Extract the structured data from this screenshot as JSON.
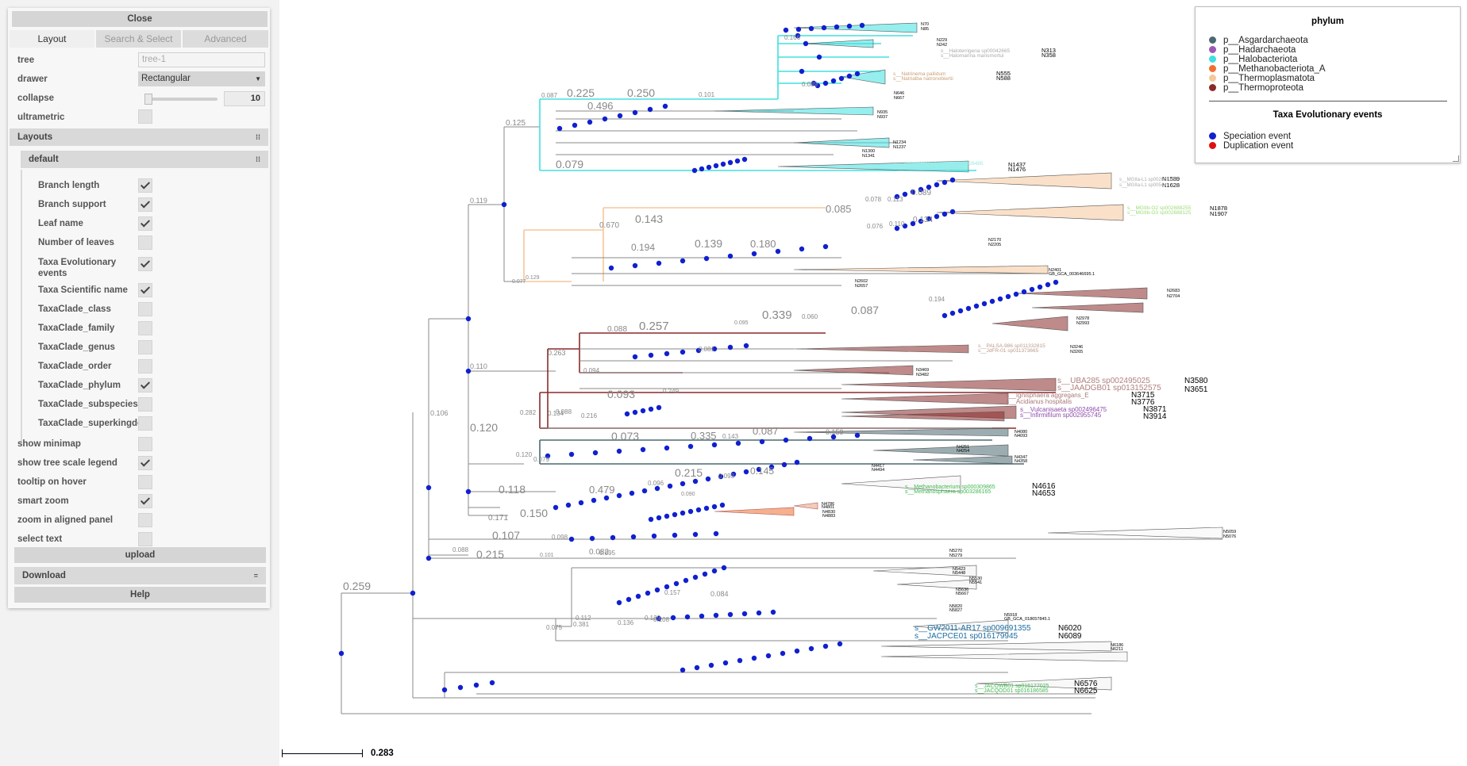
{
  "panel": {
    "close_label": "Close",
    "tabs": [
      {
        "label": "Layout",
        "active": true
      },
      {
        "label": "Search & Select",
        "active": false
      },
      {
        "label": "Advanced",
        "active": false
      }
    ],
    "tree_label": "tree",
    "tree_value": "tree-1",
    "drawer_label": "drawer",
    "drawer_value": "Rectangular",
    "collapse_label": "collapse",
    "collapse_value": "10",
    "ultrametric_label": "ultrametric",
    "layouts_header": "Layouts",
    "default_header": "default",
    "layout_options": [
      {
        "label": "Branch length",
        "checked": true
      },
      {
        "label": "Branch support",
        "checked": true
      },
      {
        "label": "Leaf name",
        "checked": true
      },
      {
        "label": "Number of leaves",
        "checked": false
      },
      {
        "label": "Taxa Evolutionary events",
        "checked": true
      },
      {
        "label": "Taxa Scientific name",
        "checked": true
      },
      {
        "label": "TaxaClade_class",
        "checked": false
      },
      {
        "label": "TaxaClade_family",
        "checked": false
      },
      {
        "label": "TaxaClade_genus",
        "checked": false
      },
      {
        "label": "TaxaClade_order",
        "checked": false
      },
      {
        "label": "TaxaClade_phylum",
        "checked": true
      },
      {
        "label": "TaxaClade_subspecies",
        "checked": false
      },
      {
        "label": "TaxaClade_superkingdom",
        "checked": false
      }
    ],
    "view_options": [
      {
        "label": "show minimap",
        "checked": false
      },
      {
        "label": "show tree scale legend",
        "checked": true
      },
      {
        "label": "tooltip on hover",
        "checked": false
      },
      {
        "label": "smart zoom",
        "checked": true
      },
      {
        "label": "zoom in aligned panel",
        "checked": false
      },
      {
        "label": "select text",
        "checked": false
      }
    ],
    "upload_label": "upload",
    "download_label": "Download",
    "help_label": "Help"
  },
  "legend": {
    "phylum_title": "phylum",
    "phyla": [
      {
        "label": "p__Asgardarchaeota",
        "color": "#4a6a72"
      },
      {
        "label": "p__Hadarchaeota",
        "color": "#9b59b6"
      },
      {
        "label": "p__Halobacteriota",
        "color": "#40e0e0"
      },
      {
        "label": "p__Methanobacteriota_A",
        "color": "#f07030"
      },
      {
        "label": "p__Thermoplasmatota",
        "color": "#f5c79a"
      },
      {
        "label": "p__Thermoproteota",
        "color": "#8b2a2a"
      }
    ],
    "events_title": "Taxa Evolutionary events",
    "events": [
      {
        "label": "Speciation event",
        "color": "#1020d0"
      },
      {
        "label": "Duplication event",
        "color": "#e01010"
      }
    ]
  },
  "scale": {
    "value": "0.283"
  },
  "tree": {
    "support_labels": [
      "0.259",
      "0.106",
      "0.119",
      "0.125",
      "0.087",
      "0.225",
      "0.250",
      "0.101",
      "0.166",
      "0.089",
      "0.496",
      "0.079",
      "0.077",
      "0.129",
      "0.670",
      "0.143",
      "0.085",
      "0.078",
      "0.113",
      "0.089",
      "0.076",
      "0.110",
      "0.134",
      "0.194",
      "0.139",
      "0.180",
      "0.110",
      "0.120",
      "0.263",
      "0.088",
      "0.257",
      "0.095",
      "0.339",
      "0.060",
      "0.087",
      "0.194",
      "0.081",
      "0.094",
      "0.093",
      "0.249",
      "0.134",
      "0.088",
      "0.282",
      "0.216",
      "0.073",
      "0.335",
      "0.143",
      "0.087",
      "0.159",
      "0.079",
      "0.120",
      "0.118",
      "0.479",
      "0.096",
      "0.215",
      "0.093",
      "0.145",
      "0.090",
      "0.171",
      "0.150",
      "0.088",
      "0.107",
      "0.215",
      "0.098",
      "0.101",
      "0.082",
      "0.095",
      "0.381",
      "0.136",
      "0.129",
      "0.157",
      "0.084",
      "0.108",
      "0.112",
      "0.075"
    ],
    "node_ids": [
      "N70",
      "N85",
      "N229",
      "N242",
      "N313",
      "N358",
      "N555",
      "N588",
      "N646",
      "N667",
      "N935",
      "N937",
      "N1234",
      "N1237",
      "N1300",
      "N1341",
      "N1437",
      "N1476",
      "N1589",
      "N1628",
      "N1878",
      "N1907",
      "N2170",
      "N2205",
      "N2401",
      "GB_GCA_003646695.1",
      "N2602",
      "N2657",
      "N2683",
      "N2704",
      "N2978",
      "N2993",
      "N3246",
      "N3265",
      "N3469",
      "N3482",
      "N3580",
      "N3651",
      "N3715",
      "N3776",
      "N3871",
      "N3914",
      "N4080",
      "N4093",
      "N4251",
      "N4254",
      "N4347",
      "N4358",
      "N4417",
      "N4494",
      "N4616",
      "N4653",
      "N4786",
      "N4801",
      "N4830",
      "N4883",
      "N5059",
      "N5076",
      "N5270",
      "N5279",
      "N5423",
      "N5448",
      "N5530",
      "N5541",
      "N5636",
      "N5667",
      "N5820",
      "N5827",
      "N5918",
      "GB_GCA_018657845.1",
      "N6020",
      "N6089",
      "N6186",
      "N6211",
      "N6576",
      "N6625"
    ],
    "species_names": [
      "s__Haloterrigena sp00042665",
      "s__Halomarina marismortui",
      "s__Natrinema pallidum",
      "s__Natrialba natronobiertii",
      "s__Halanaeroarchaeum sp002426485",
      "s__Haloarchaeobius sp0060e",
      "s__MGIIa-L1 sp002688705",
      "s__MGIIa-L1 sp0054u",
      "s__MGIIb-O2 sp002688255",
      "s__MGIIb-O3 sp002688125",
      "s__PALSA-986 sp011332815",
      "s__JdFR-01 sp011373665",
      "s__UBA285 sp002495025",
      "s__JAADGB01 sp013152575",
      "s__Ignisphaera aggregans_E",
      "s__Acidianus hospitalis",
      "s__Vulcanisaeta sp002496475",
      "s__Infirmifilum sp002955745",
      "s__Methanobacterium sp000309865",
      "s__Methanosphaera sp003286165",
      "s__GW2011-AR17 sp009691355",
      "s__JACPCE01 sp016179945",
      "s__JACOWB01 sp016177025",
      "s__JACQOD01 sp016186585"
    ]
  }
}
